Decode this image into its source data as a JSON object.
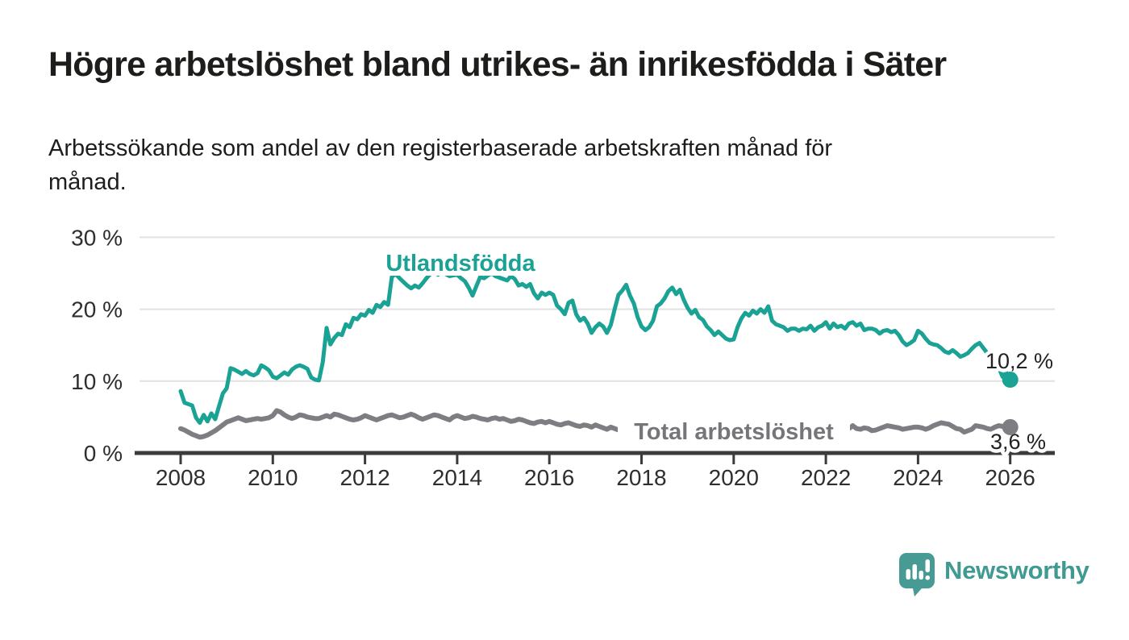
{
  "title": "Högre arbetslöshet bland utrikes- än inrikesfödda i Säter",
  "subtitle_lines": [
    "Arbetssökande som andel av den registerbaserade arbetskraften månad för",
    "månad."
  ],
  "footer": {
    "brand": "Newsworthy",
    "logo_icon": "speech-bubble-bar-chart-icon"
  },
  "colors": {
    "utlandsfodda": "#1aa294",
    "total": "#7e7e82",
    "total_label": "#75757a",
    "text_dark": "#1d1d1b",
    "tick_text": "#2e2e2e",
    "grid": "#e1e1e1",
    "axis": "#3b3b3b",
    "logo_teal": "#479b94"
  },
  "chart_data": {
    "type": "line",
    "title": "",
    "xlabel": "",
    "ylabel": "",
    "x_start_year": 2008,
    "points_per_year": 12,
    "xlim": [
      2007.1,
      2027
    ],
    "ylim": [
      0,
      31
    ],
    "grid": true,
    "x_ticks": [
      {
        "year": 2008,
        "label": "2008"
      },
      {
        "year": 2010,
        "label": "2010"
      },
      {
        "year": 2012,
        "label": "2012"
      },
      {
        "year": 2014,
        "label": "2014"
      },
      {
        "year": 2016,
        "label": "2016"
      },
      {
        "year": 2018,
        "label": "2018"
      },
      {
        "year": 2020,
        "label": "2020"
      },
      {
        "year": 2022,
        "label": "2022"
      },
      {
        "year": 2024,
        "label": "2024"
      },
      {
        "year": 2026,
        "label": "2026"
      }
    ],
    "y_ticks": [
      {
        "value": 30,
        "label": "30 %"
      },
      {
        "value": 20,
        "label": "20 %"
      },
      {
        "value": 10,
        "label": "10 %"
      },
      {
        "value": 0,
        "label": "0 %"
      }
    ],
    "series": [
      {
        "name": "Utlandsfödda",
        "inline_label": "Utlandsfödda",
        "end_label": "10,2 %",
        "end_value": 10.2,
        "color": "#1aa294",
        "values": [
          8.6,
          7.0,
          6.8,
          6.6,
          4.9,
          4.2,
          5.3,
          4.4,
          5.5,
          4.7,
          6.5,
          8.3,
          9.0,
          11.8,
          11.6,
          11.3,
          11.0,
          11.4,
          11.0,
          10.8,
          11.1,
          12.2,
          11.9,
          11.5,
          10.6,
          10.4,
          10.8,
          11.2,
          10.9,
          11.6,
          12.0,
          12.2,
          12.0,
          11.7,
          10.5,
          10.2,
          10.1,
          12.6,
          17.4,
          15.1,
          16.0,
          16.6,
          16.4,
          17.9,
          17.5,
          18.8,
          18.6,
          19.3,
          19.1,
          19.9,
          19.5,
          20.6,
          20.3,
          21.0,
          20.6,
          24.5,
          24.9,
          24.3,
          23.8,
          23.3,
          22.9,
          23.3,
          23.0,
          23.6,
          24.3,
          24.9,
          25.2,
          24.8,
          25.4,
          24.9,
          24.6,
          24.7,
          24.8,
          24.3,
          23.9,
          23.0,
          21.9,
          23.2,
          24.5,
          24.3,
          24.7,
          25.0,
          24.6,
          24.4,
          24.2,
          24.0,
          24.6,
          24.2,
          23.3,
          23.5,
          23.1,
          23.5,
          22.2,
          21.5,
          22.3,
          22.0,
          22.3,
          22.0,
          20.5,
          20.0,
          19.3,
          20.9,
          21.2,
          19.3,
          18.4,
          18.8,
          18.0,
          16.7,
          17.5,
          18.0,
          17.6,
          16.7,
          17.8,
          20.0,
          22.0,
          22.6,
          23.4,
          21.9,
          20.8,
          18.9,
          17.6,
          17.1,
          17.5,
          18.4,
          20.4,
          20.8,
          21.5,
          22.5,
          23.0,
          22.1,
          22.7,
          21.3,
          20.2,
          19.4,
          19.9,
          18.9,
          18.5,
          17.6,
          17.1,
          16.4,
          16.9,
          16.4,
          15.9,
          15.7,
          15.8,
          17.5,
          18.7,
          19.5,
          19.1,
          19.8,
          19.4,
          20.0,
          19.5,
          20.4,
          18.4,
          17.9,
          17.7,
          17.5,
          17.0,
          17.3,
          17.3,
          17.0,
          17.3,
          17.2,
          17.7,
          17.0,
          17.5,
          17.7,
          18.2,
          17.3,
          18.0,
          17.5,
          17.7,
          17.3,
          18.0,
          18.2,
          17.7,
          18.0,
          17.1,
          17.3,
          17.3,
          17.1,
          16.6,
          17.0,
          17.1,
          16.8,
          17.0,
          16.4,
          15.5,
          15.0,
          15.3,
          15.7,
          17.0,
          16.6,
          15.9,
          15.3,
          15.1,
          15.0,
          14.6,
          14.1,
          13.9,
          14.3,
          13.9,
          13.4,
          13.6,
          13.9,
          14.5,
          15.0,
          15.3,
          14.6,
          13.9,
          13.7,
          13.4,
          11.9,
          10.6,
          11.2,
          10.2
        ]
      },
      {
        "name": "Total arbetslöshet",
        "inline_label": "Total arbetslöshet",
        "end_label": "3,6 %",
        "end_value": 3.6,
        "color": "#7e7e82",
        "values": [
          3.4,
          3.2,
          2.9,
          2.6,
          2.4,
          2.2,
          2.3,
          2.5,
          2.8,
          3.1,
          3.5,
          3.9,
          4.3,
          4.5,
          4.7,
          4.9,
          4.7,
          4.5,
          4.6,
          4.7,
          4.8,
          4.7,
          4.8,
          4.9,
          5.2,
          5.9,
          5.7,
          5.3,
          5.0,
          4.8,
          5.0,
          5.3,
          5.2,
          5.0,
          4.9,
          4.8,
          4.8,
          5.0,
          5.2,
          5.0,
          5.4,
          5.3,
          5.1,
          4.9,
          4.7,
          4.6,
          4.7,
          4.9,
          5.2,
          5.0,
          4.8,
          4.6,
          4.8,
          5.0,
          5.2,
          5.3,
          5.1,
          4.9,
          5.0,
          5.2,
          5.4,
          5.2,
          4.9,
          4.7,
          4.9,
          5.1,
          5.3,
          5.2,
          5.0,
          4.8,
          4.6,
          5.0,
          5.2,
          5.0,
          4.8,
          4.9,
          5.1,
          5.0,
          4.8,
          4.7,
          4.6,
          4.8,
          4.9,
          4.7,
          4.8,
          4.6,
          4.4,
          4.5,
          4.7,
          4.6,
          4.4,
          4.2,
          4.1,
          4.3,
          4.4,
          4.2,
          4.4,
          4.2,
          4.0,
          3.9,
          4.1,
          4.2,
          4.0,
          3.8,
          3.7,
          3.9,
          3.8,
          3.6,
          3.9,
          3.7,
          3.5,
          3.3,
          3.6,
          3.4,
          3.2,
          3.1,
          3.2,
          3.1,
          3.0,
          3.1,
          3.2,
          3.3,
          3.1,
          3.0,
          3.1,
          3.2,
          3.1,
          3.0,
          2.9,
          3.0,
          3.1,
          3.0,
          3.1,
          3.2,
          3.1,
          3.0,
          3.1,
          3.2,
          3.3,
          3.2,
          3.1,
          3.2,
          3.3,
          3.2,
          3.3,
          3.4,
          3.6,
          3.7,
          3.6,
          3.5,
          3.4,
          3.5,
          3.6,
          3.5,
          3.4,
          3.3,
          3.4,
          3.5,
          3.4,
          3.3,
          3.4,
          3.3,
          3.2,
          3.3,
          3.4,
          3.3,
          3.2,
          3.3,
          3.2,
          3.3,
          3.4,
          3.3,
          3.2,
          3.3,
          3.4,
          3.8,
          3.4,
          3.3,
          3.5,
          3.4,
          3.1,
          3.2,
          3.4,
          3.6,
          3.8,
          3.7,
          3.6,
          3.5,
          3.3,
          3.4,
          3.5,
          3.6,
          3.6,
          3.5,
          3.3,
          3.5,
          3.8,
          4.0,
          4.2,
          4.1,
          4.0,
          3.7,
          3.4,
          3.3,
          2.9,
          3.1,
          3.3,
          3.8,
          3.7,
          3.6,
          3.4,
          3.3,
          3.6,
          3.8,
          3.7,
          3.6,
          3.6
        ]
      }
    ]
  }
}
